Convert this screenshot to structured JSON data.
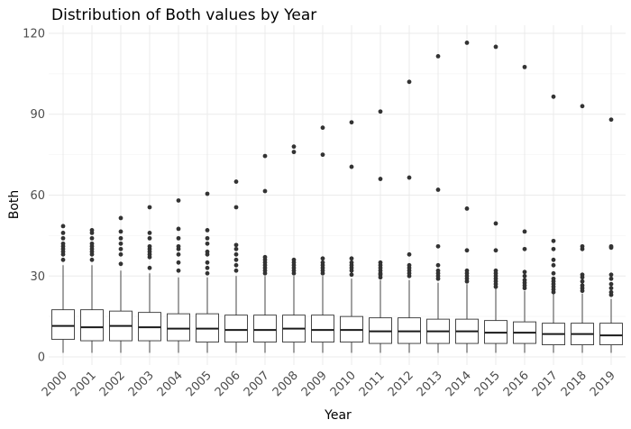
{
  "chart_data": {
    "type": "box",
    "title": "Distribution of Both values by Year",
    "xlabel": "Year",
    "ylabel": "Both",
    "ylim": [
      -3,
      123
    ],
    "yticks": [
      0,
      30,
      60,
      90,
      120
    ],
    "grid": true,
    "categories": [
      "2000",
      "2001",
      "2002",
      "2003",
      "2004",
      "2005",
      "2006",
      "2007",
      "2008",
      "2009",
      "2010",
      "2011",
      "2012",
      "2013",
      "2014",
      "2015",
      "2016",
      "2017",
      "2018",
      "2019"
    ],
    "boxes": [
      {
        "q1": 6.5,
        "median": 11.5,
        "q3": 17.5,
        "whisker_low": 1.5,
        "whisker_high": 34,
        "outliers": [
          36,
          38,
          39,
          40,
          41,
          42,
          44,
          46,
          48.5
        ]
      },
      {
        "q1": 6.0,
        "median": 11.0,
        "q3": 17.5,
        "whisker_low": 1.5,
        "whisker_high": 34,
        "outliers": [
          36,
          38,
          39,
          40,
          41,
          42,
          44,
          46,
          47
        ]
      },
      {
        "q1": 6.0,
        "median": 11.5,
        "q3": 17.0,
        "whisker_low": 1.5,
        "whisker_high": 32,
        "outliers": [
          34.5,
          38,
          40,
          42,
          44,
          46.5,
          51.5
        ]
      },
      {
        "q1": 6.0,
        "median": 11.0,
        "q3": 16.5,
        "whisker_low": 1.5,
        "whisker_high": 31,
        "outliers": [
          33,
          37,
          38,
          39,
          40,
          41,
          44,
          46,
          55.5
        ]
      },
      {
        "q1": 6.0,
        "median": 10.5,
        "q3": 16.0,
        "whisker_low": 1.5,
        "whisker_high": 29.5,
        "outliers": [
          32,
          35,
          38,
          40,
          41,
          44,
          47.5,
          58
        ]
      },
      {
        "q1": 5.5,
        "median": 10.5,
        "q3": 16.0,
        "whisker_low": 1.5,
        "whisker_high": 29.5,
        "outliers": [
          31,
          33,
          35,
          38,
          39,
          42,
          44,
          47,
          60.5
        ]
      },
      {
        "q1": 5.5,
        "median": 10.0,
        "q3": 15.5,
        "whisker_low": 1.5,
        "whisker_high": 30,
        "outliers": [
          32,
          34,
          36,
          38,
          40,
          41.5,
          55.5,
          65
        ]
      },
      {
        "q1": 5.5,
        "median": 10.0,
        "q3": 15.5,
        "whisker_low": 1.5,
        "whisker_high": 30,
        "outliers": [
          31,
          32,
          33,
          34,
          35,
          36,
          37,
          61.5,
          74.5
        ]
      },
      {
        "q1": 5.5,
        "median": 10.5,
        "q3": 15.5,
        "whisker_low": 1.5,
        "whisker_high": 30,
        "outliers": [
          31,
          32,
          33,
          34,
          35,
          36,
          76,
          78
        ]
      },
      {
        "q1": 5.5,
        "median": 10.0,
        "q3": 15.5,
        "whisker_low": 1.5,
        "whisker_high": 30,
        "outliers": [
          31,
          32,
          33,
          34,
          35,
          36.5,
          75,
          85
        ]
      },
      {
        "q1": 5.5,
        "median": 10.0,
        "q3": 15.0,
        "whisker_low": 1.5,
        "whisker_high": 29,
        "outliers": [
          30.5,
          32,
          33,
          34,
          35,
          36.5,
          70.5,
          87
        ]
      },
      {
        "q1": 5.0,
        "median": 9.5,
        "q3": 14.5,
        "whisker_low": 1.5,
        "whisker_high": 28.5,
        "outliers": [
          29.5,
          30.5,
          31,
          32,
          33,
          34,
          35,
          66,
          91
        ]
      },
      {
        "q1": 5.0,
        "median": 9.5,
        "q3": 14.5,
        "whisker_low": 1.5,
        "whisker_high": 28.5,
        "outliers": [
          30,
          31,
          32,
          33,
          34,
          38,
          66.5,
          102
        ]
      },
      {
        "q1": 5.0,
        "median": 9.5,
        "q3": 14.0,
        "whisker_low": 1.5,
        "whisker_high": 27.5,
        "outliers": [
          29,
          30,
          31,
          32,
          34,
          41,
          62,
          111.5
        ]
      },
      {
        "q1": 5.0,
        "median": 9.5,
        "q3": 14.0,
        "whisker_low": 1.5,
        "whisker_high": 27,
        "outliers": [
          28,
          29,
          30,
          31,
          32,
          39.5,
          55,
          116.5
        ]
      },
      {
        "q1": 5.0,
        "median": 9.0,
        "q3": 13.5,
        "whisker_low": 1.5,
        "whisker_high": 25.5,
        "outliers": [
          26,
          27,
          28,
          29,
          30,
          31,
          32,
          39.5,
          49.5,
          115
        ]
      },
      {
        "q1": 5.0,
        "median": 9.0,
        "q3": 13.0,
        "whisker_low": 1.5,
        "whisker_high": 24.5,
        "outliers": [
          25.5,
          26.5,
          27.5,
          28.5,
          30,
          31.5,
          40,
          46.5,
          107.5
        ]
      },
      {
        "q1": 4.5,
        "median": 8.5,
        "q3": 12.5,
        "whisker_low": 1.5,
        "whisker_high": 23.5,
        "outliers": [
          24,
          25,
          26,
          27,
          28,
          29,
          31,
          34,
          36,
          40,
          43,
          96.5
        ]
      },
      {
        "q1": 4.5,
        "median": 8.5,
        "q3": 12.5,
        "whisker_low": 1.5,
        "whisker_high": 23.5,
        "outliers": [
          24.5,
          25.5,
          26.5,
          28,
          29.5,
          30.5,
          40,
          41,
          93
        ]
      },
      {
        "q1": 4.5,
        "median": 8.0,
        "q3": 12.5,
        "whisker_low": 1.5,
        "whisker_high": 21.5,
        "outliers": [
          23,
          24,
          25.5,
          27,
          29,
          30.5,
          40.5,
          41,
          88
        ]
      }
    ]
  }
}
